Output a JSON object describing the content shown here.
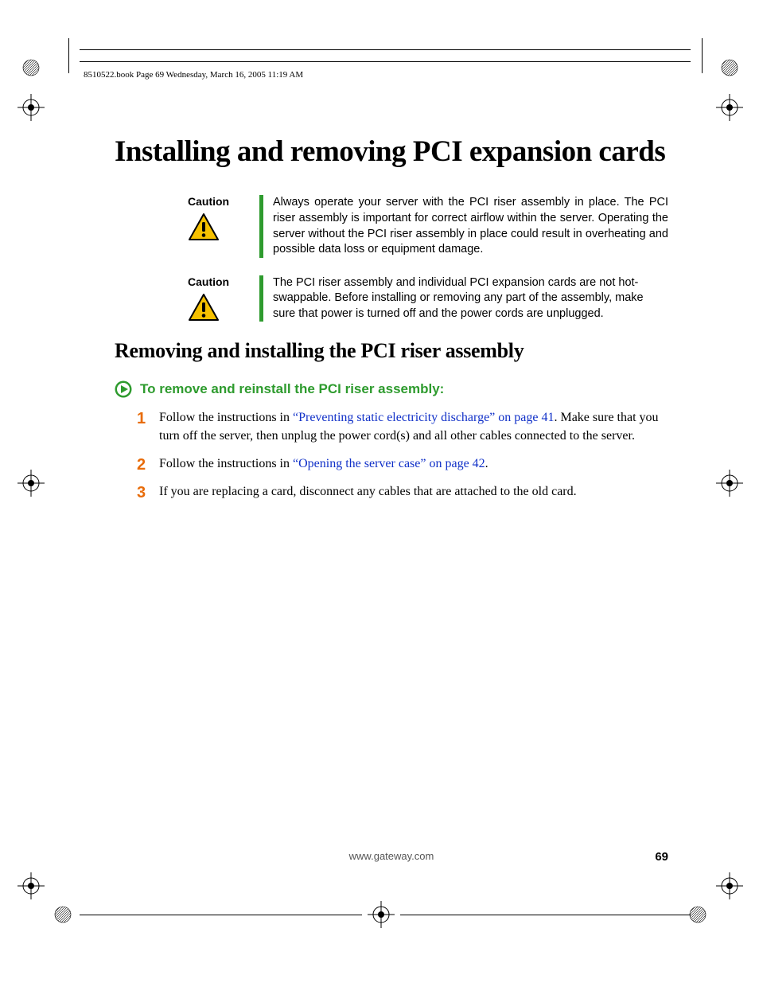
{
  "header": {
    "line": "8510522.book  Page 69  Wednesday, March 16, 2005  11:19 AM"
  },
  "title": "Installing and removing PCI expansion cards",
  "cautions": [
    {
      "label": "Caution",
      "text": "Always operate your server with the PCI riser assembly in place. The PCI riser assembly is important for correct airflow within the server. Operating the server without the PCI riser assembly in place could result in overheating and possible data loss or equipment damage.",
      "justify": true
    },
    {
      "label": "Caution",
      "text": "The PCI riser assembly and individual PCI expansion cards are not hot-swappable. Before installing or removing any part of the assembly, make sure that power is turned off and the power cords are unplugged.",
      "justify": false
    }
  ],
  "subhead": "Removing and installing the PCI riser assembly",
  "proc_head": "To remove and reinstall the PCI riser assembly:",
  "steps": [
    {
      "num": "1",
      "pre": "Follow the instructions in ",
      "link": "“Preventing static electricity discharge” on page 41",
      "post": ". Make sure that you turn off the server, then unplug the power cord(s) and all other cables connected to the server."
    },
    {
      "num": "2",
      "pre": "Follow the instructions in ",
      "link": "“Opening the server case” on page 42",
      "post": "."
    },
    {
      "num": "3",
      "pre": "If you are replacing a card, disconnect any cables that are attached to the old card.",
      "link": "",
      "post": ""
    }
  ],
  "footer": {
    "url": "www.gateway.com",
    "page": "69"
  },
  "colors": {
    "green": "#2e9b2e",
    "orange": "#e86c0a",
    "link": "#1030c8",
    "warn_yellow": "#f5c000"
  }
}
